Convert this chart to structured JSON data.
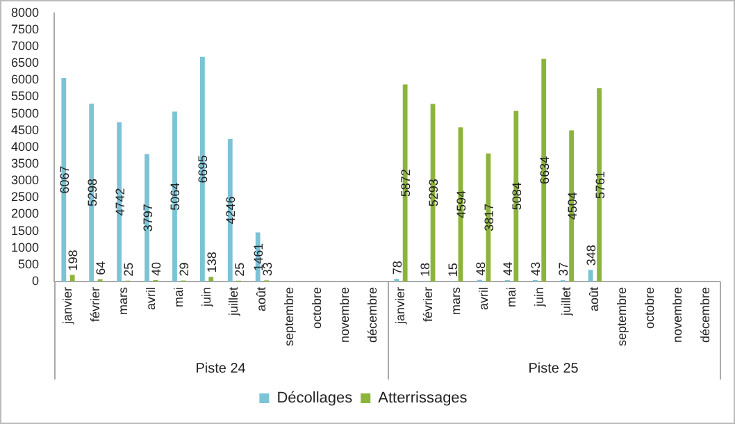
{
  "chart_data": {
    "type": "bar",
    "categories": [
      "janvier",
      "février",
      "mars",
      "avril",
      "mai",
      "juin",
      "juillet",
      "août",
      "septembre",
      "octobre",
      "novembre",
      "décembre",
      "janvier",
      "février",
      "mars",
      "avril",
      "mai",
      "juin",
      "juillet",
      "août",
      "septembre",
      "octobre",
      "novembre",
      "décembre"
    ],
    "series": [
      {
        "name": "Décollages",
        "color": "#7cc3d6",
        "values": [
          6067,
          5298,
          4742,
          3797,
          5064,
          6695,
          4246,
          1461,
          null,
          null,
          null,
          null,
          78,
          18,
          15,
          48,
          44,
          43,
          37,
          348,
          null,
          null,
          null,
          null
        ]
      },
      {
        "name": "Atterrissages",
        "color": "#8cb43c",
        "values": [
          198,
          64,
          25,
          40,
          29,
          138,
          25,
          33,
          null,
          null,
          null,
          null,
          5872,
          5293,
          4594,
          3817,
          5084,
          6634,
          4504,
          5761,
          null,
          null,
          null,
          null
        ]
      }
    ],
    "ylim": [
      0,
      8000
    ],
    "yticks": [
      0,
      500,
      1000,
      1500,
      2000,
      2500,
      3000,
      3500,
      4000,
      4500,
      5000,
      5500,
      6000,
      6500,
      7000,
      7500,
      8000
    ],
    "grid": false,
    "legend": "bottom",
    "data_labels": true,
    "annotations": [
      "Piste 24",
      "Piste 25"
    ]
  }
}
